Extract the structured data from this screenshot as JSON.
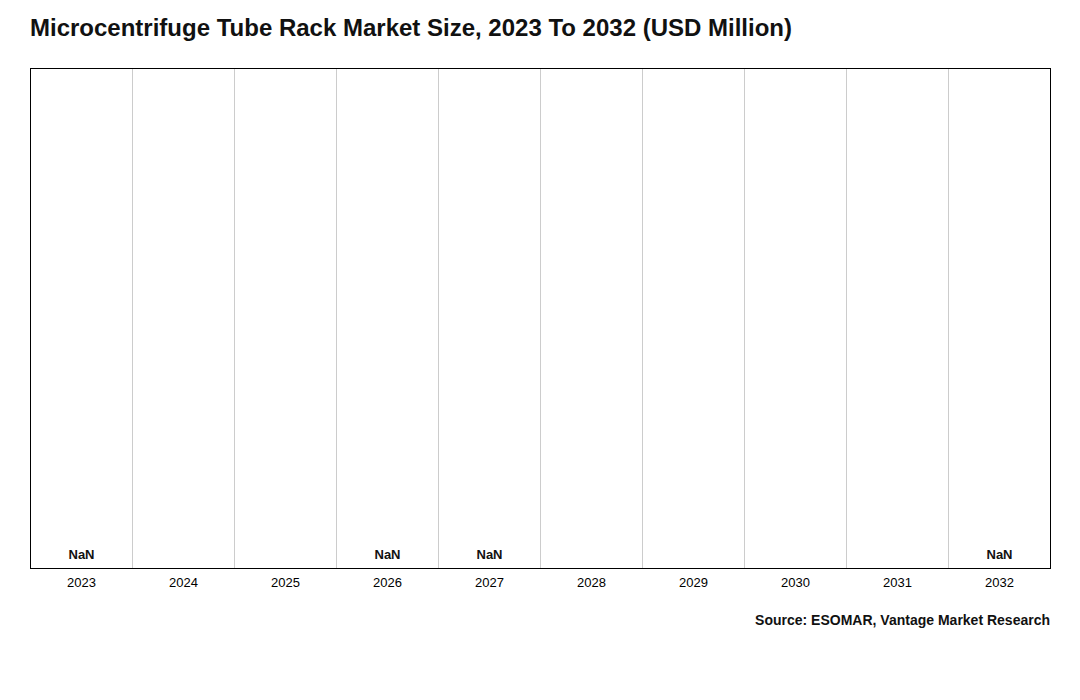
{
  "chart_data": {
    "type": "bar",
    "title": "Microcentrifuge Tube Rack Market Size, 2023 To 2032 (USD Million)",
    "x": [
      2023,
      2024,
      2025,
      2026,
      2027,
      2028,
      2029,
      2030,
      2031,
      2032
    ],
    "values": [
      null,
      null,
      null,
      null,
      null,
      null,
      null,
      null,
      null,
      null
    ],
    "xlim": [
      2022.5,
      2032.5
    ],
    "xticks": [
      2023,
      2024,
      2025,
      2026,
      2027,
      2028,
      2029,
      2030,
      2031,
      2032
    ],
    "ylim": [
      0,
      1
    ],
    "tick_labels": "x",
    "grid": true,
    "annotations": [
      {
        "x": 2023,
        "text": "NaN"
      },
      {
        "x": 2026,
        "text": "NaN"
      },
      {
        "x": 2027,
        "text": "NaN"
      },
      {
        "x": 2032,
        "text": "NaN"
      }
    ],
    "caption": "Source: ESOMAR, Vantage Market Research"
  }
}
